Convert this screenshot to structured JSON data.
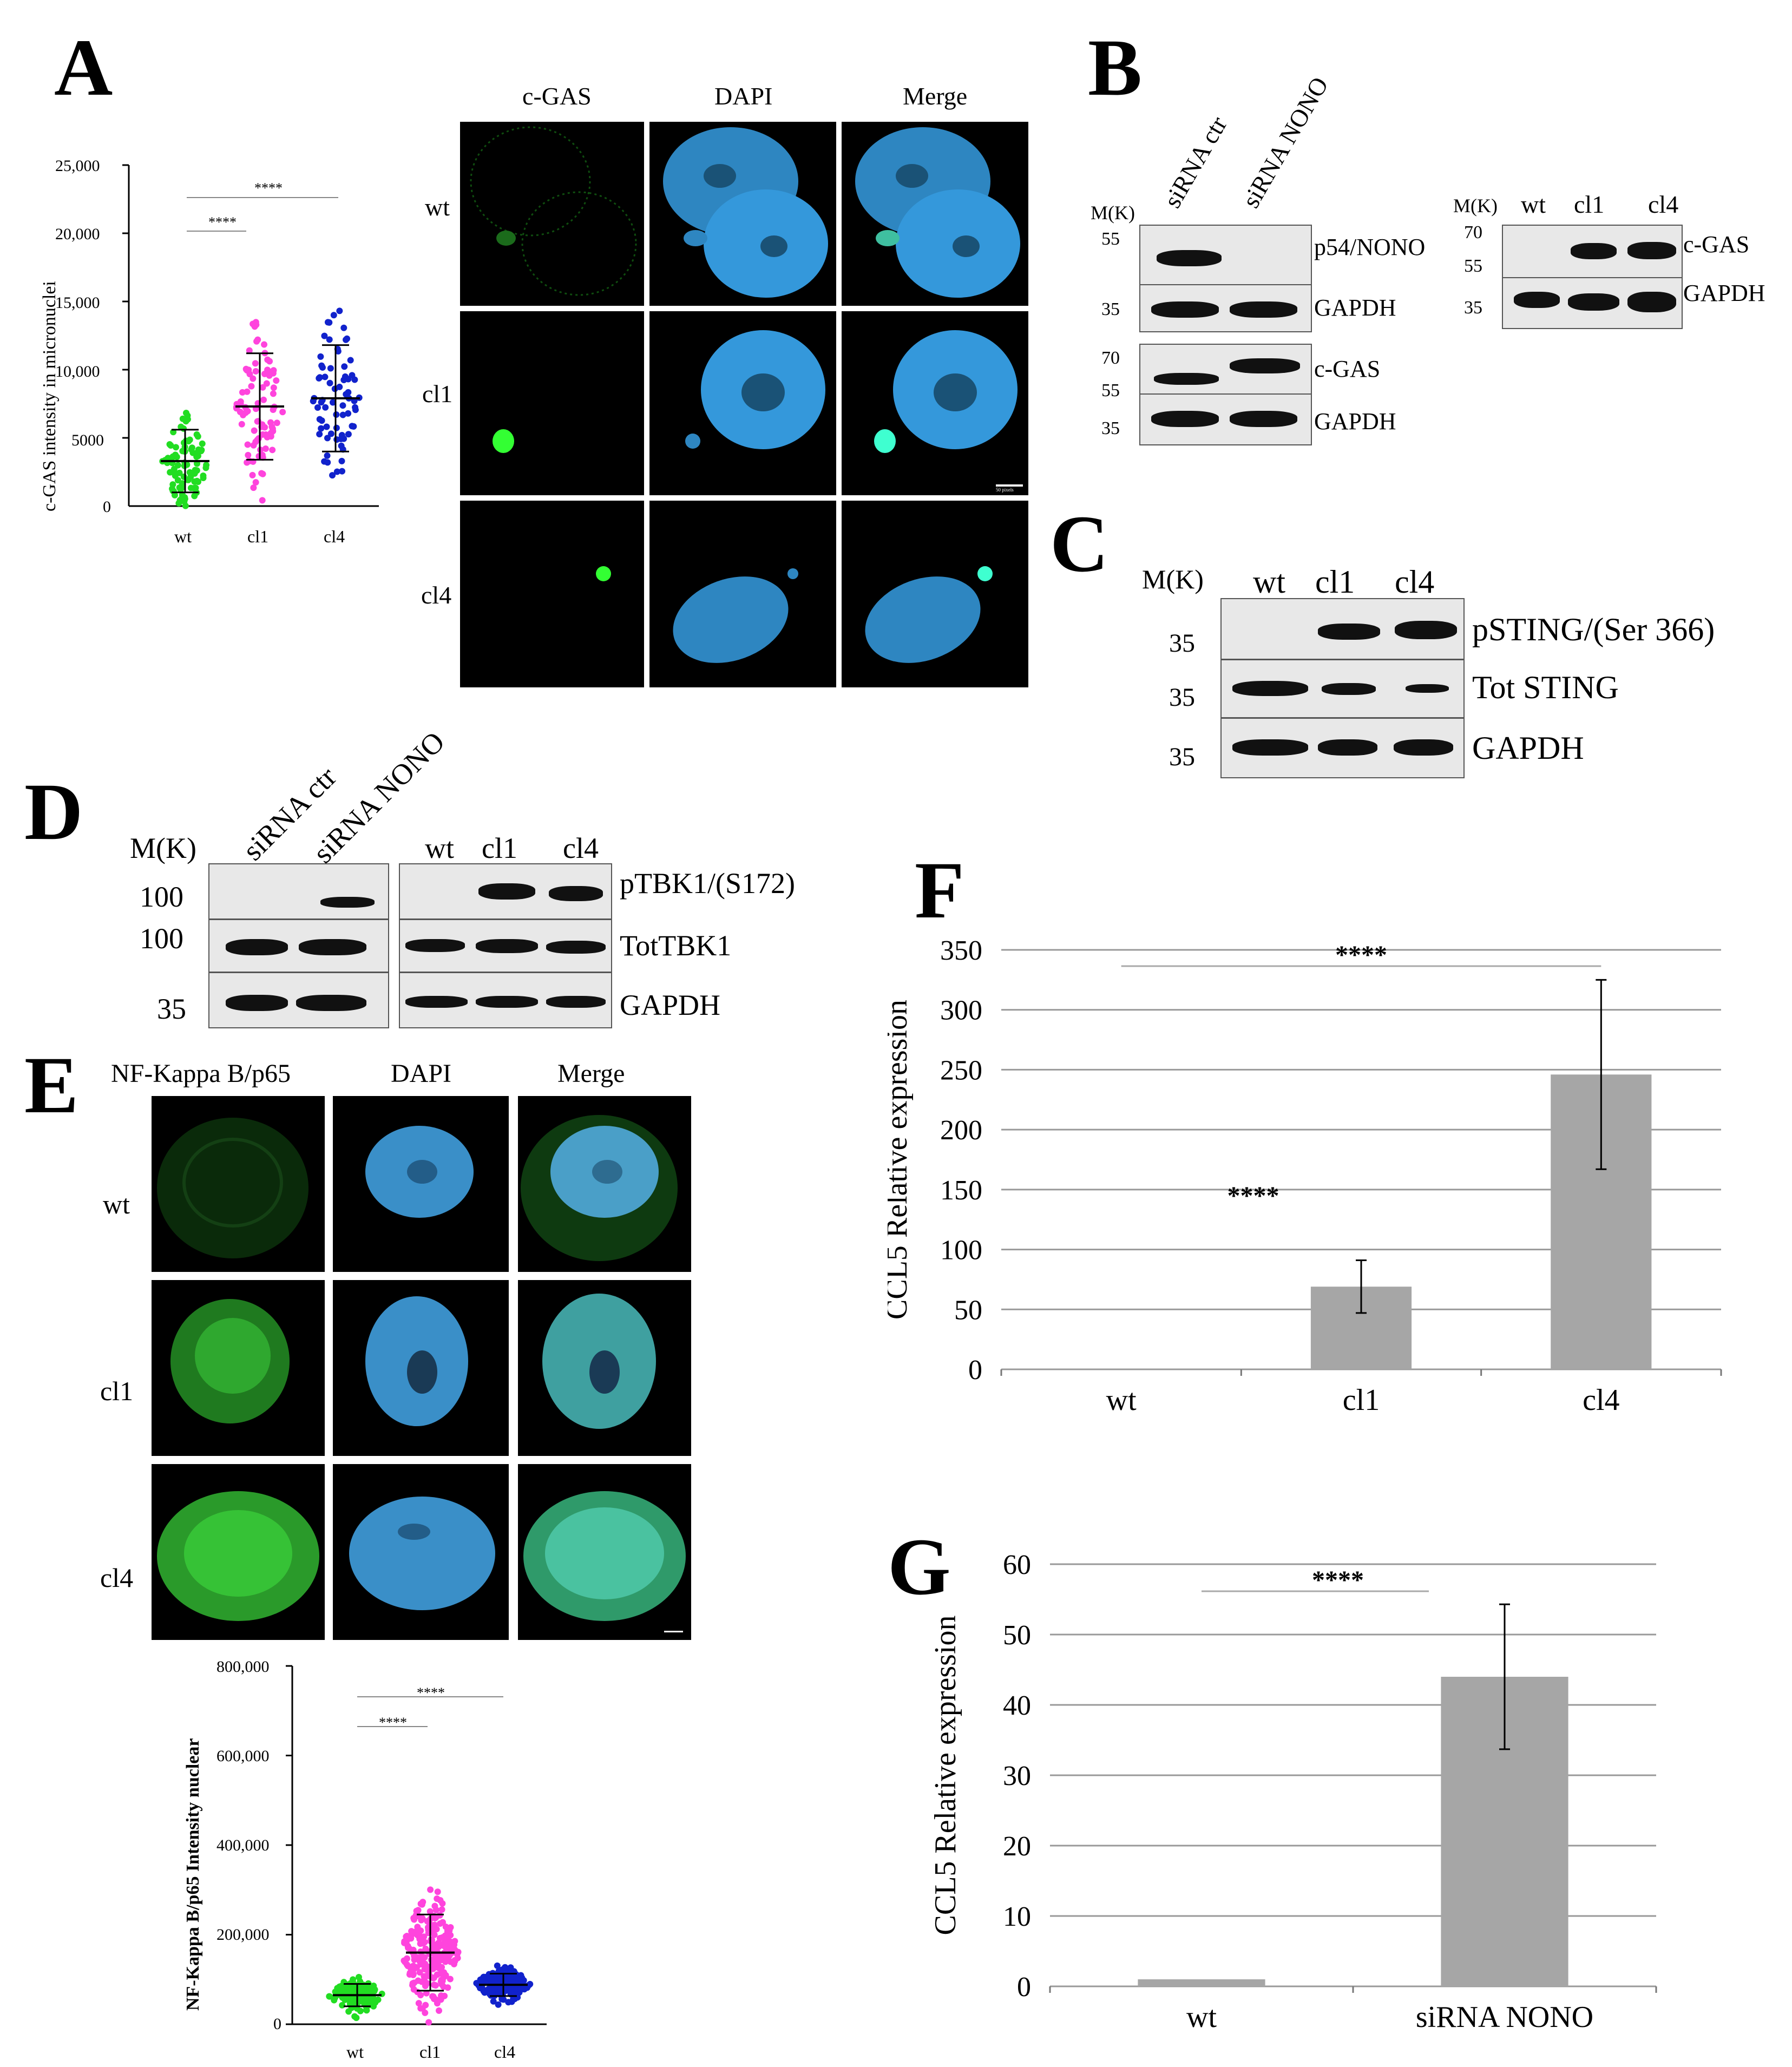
{
  "panels": {
    "A": "A",
    "B": "B",
    "C": "C",
    "D": "D",
    "E": "E",
    "F": "F",
    "G": "G"
  },
  "panelA": {
    "ylabel": "c-GAS intensity in micronuclei",
    "yticks": [
      "25,000",
      "20,000",
      "15,000",
      "10,000",
      "5000",
      "0"
    ],
    "xticks": [
      "wt",
      "cl1",
      "cl4"
    ],
    "sig": [
      "****",
      "****"
    ],
    "img_cols": [
      "c-GAS",
      "DAPI",
      "Merge"
    ],
    "img_rows": [
      "wt",
      "cl1",
      "cl4"
    ],
    "scale": "50 pixels"
  },
  "panelB": {
    "lanes_left": [
      "siRNA ctr",
      "siRNA NONO"
    ],
    "mk": "M(K)",
    "left_markers": [
      "55",
      "35",
      "70",
      "55",
      "35"
    ],
    "left_labels": [
      "p54/NONO",
      "GAPDH",
      "c-GAS",
      "GAPDH"
    ],
    "lanes_right": [
      "wt",
      "cl1",
      "cl4"
    ],
    "right_markers": [
      "70",
      "55",
      "35"
    ],
    "right_labels": [
      "c-GAS",
      "GAPDH"
    ]
  },
  "panelC": {
    "mk": "M(K)",
    "lanes": [
      "wt",
      "cl1",
      "cl4"
    ],
    "markers": [
      "35",
      "35",
      "35"
    ],
    "labels": [
      "pSTING/(Ser 366)",
      "Tot STING",
      "GAPDH"
    ]
  },
  "panelD": {
    "mk": "M(K)",
    "lanes_left": [
      "siRNA ctr",
      "siRNA NONO"
    ],
    "lanes_right": [
      "wt",
      "cl1",
      "cl4"
    ],
    "markers": [
      "100",
      "100",
      "35"
    ],
    "labels": [
      "pTBK1/(S172)",
      "TotTBK1",
      "GAPDH"
    ]
  },
  "panelE": {
    "img_cols": [
      "NF-Kappa B/p65",
      "DAPI",
      "Merge"
    ],
    "img_rows": [
      "wt",
      "cl1",
      "cl4"
    ],
    "ylabel": "NF-Kappa B/p65 Intensity nuclear",
    "yticks": [
      "800,000",
      "600,000",
      "400,000",
      "200,000",
      "0"
    ],
    "xticks": [
      "wt",
      "cl1",
      "cl4"
    ],
    "sig": [
      "****",
      "****"
    ]
  },
  "chart_data": [
    {
      "panel": "F",
      "type": "bar",
      "categories": [
        "wt",
        "cl1",
        "cl4"
      ],
      "values": [
        0,
        69,
        246
      ],
      "errors": [
        0,
        22,
        79
      ],
      "ylabel": "CCL5 Relative expression",
      "ylim": [
        0,
        350
      ],
      "yticks": [
        0,
        50,
        100,
        150,
        200,
        250,
        300,
        350
      ],
      "annotations": [
        "****",
        "****"
      ],
      "grid": true,
      "bar_color": "#a6a6a6"
    },
    {
      "panel": "G",
      "type": "bar",
      "categories": [
        "wt",
        "siRNA NONO"
      ],
      "values": [
        1,
        44
      ],
      "errors": [
        0,
        10.3
      ],
      "ylabel": "CCL5 Relative expression",
      "ylim": [
        0,
        60
      ],
      "yticks": [
        0,
        10,
        20,
        30,
        40,
        50,
        60
      ],
      "annotations": [
        "****"
      ],
      "grid": true,
      "bar_color": "#a6a6a6"
    },
    {
      "panel": "A",
      "type": "scatter",
      "categories": [
        "wt",
        "cl1",
        "cl4"
      ],
      "means": [
        3300,
        7300,
        7900
      ],
      "sd": [
        2300,
        3900,
        3900
      ],
      "ylim": [
        0,
        25000
      ],
      "colors": [
        "#22dd22",
        "#ff44dd",
        "#1122cc"
      ]
    },
    {
      "panel": "E",
      "type": "scatter",
      "categories": [
        "wt",
        "cl1",
        "cl4"
      ],
      "means": [
        65000,
        160000,
        88000
      ],
      "sd": [
        25000,
        85000,
        25000
      ],
      "ylim": [
        0,
        800000
      ],
      "colors": [
        "#22dd22",
        "#ff44dd",
        "#1122cc"
      ]
    }
  ]
}
